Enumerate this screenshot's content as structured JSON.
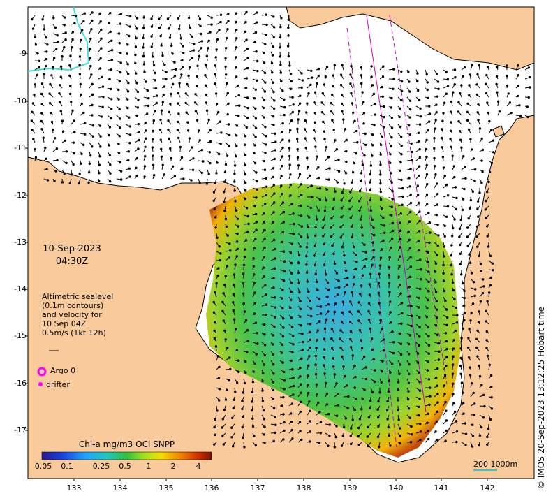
{
  "map": {
    "date": "10-Sep-2023",
    "time": "04:30Z",
    "lat_ticks": [
      "-9",
      "-10",
      "-11",
      "-12",
      "-13",
      "-14",
      "-15",
      "-16",
      "-17"
    ],
    "lon_ticks": [
      "133",
      "134",
      "135",
      "136",
      "137",
      "138",
      "139",
      "140",
      "141",
      "142"
    ],
    "altimetry": {
      "line1": "Altimetric sealevel",
      "line2": "(0.1m contours)",
      "line3": "and velocity for",
      "line4": "10 Sep 04Z",
      "line5": "0.5m/s (1kt 12h)"
    },
    "legend": {
      "argo": "Argo 0",
      "drifter": "drifter",
      "argo_color": "#ff00ff",
      "drifter_color": "#ff00ff"
    },
    "colorbar": {
      "title": "Chl-a mg/m3 OCi SNPP",
      "ticks": [
        "0.05",
        "0.1",
        "0.25",
        "0.5",
        "1",
        "2",
        "4"
      ]
    },
    "scale_label": "200  1000m",
    "credit": "© IMOS 20-Sep-2023 13:12:25 Hobart time",
    "colors": {
      "land": "#f9cb9c",
      "ocean": "#ffffff",
      "track": "#cc00cc",
      "scale_line": "#40c0c0",
      "contour": "#40e0e0"
    }
  }
}
